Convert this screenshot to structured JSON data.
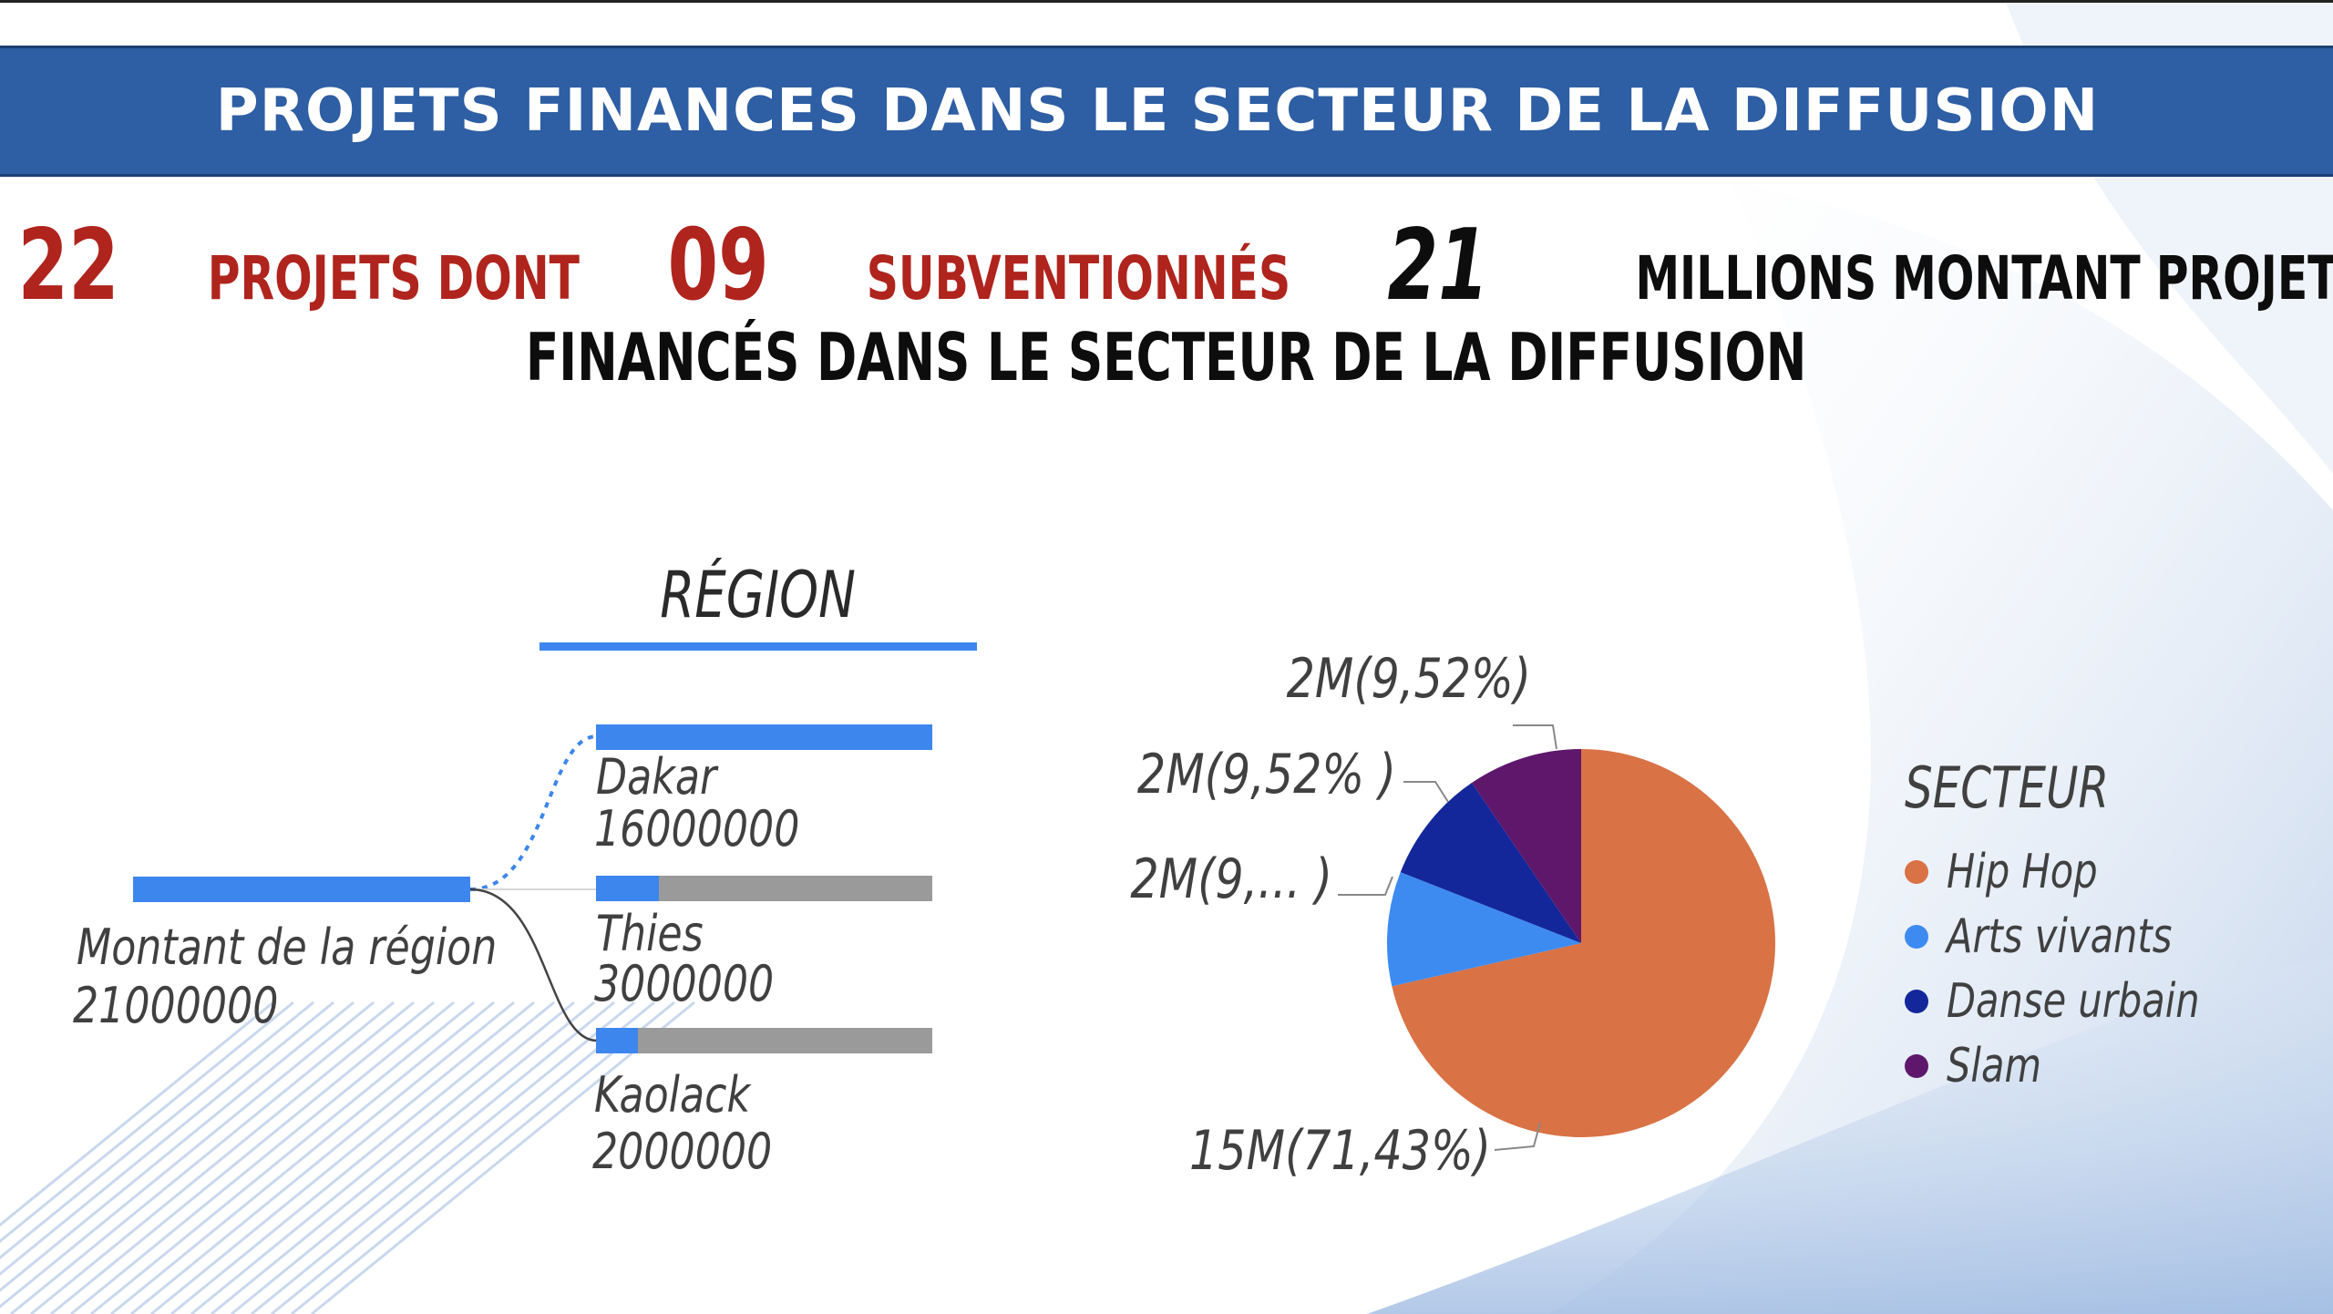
{
  "banner": {
    "title": "PROJETS FINANCES DANS LE SECTEUR DE LA DIFFUSION"
  },
  "headline": {
    "projects_count": "22",
    "projects_text": "PROJETS DONT",
    "subsidized_count": "09",
    "subsidized_text": "SUBVENTIONNÉS",
    "amount": "21",
    "amount_text": "MILLIONS MONTANT PROJET",
    "line2": "FINANCÉS DANS LE SECTEUR DE LA DIFFUSION"
  },
  "region": {
    "title": "RÉGION",
    "root": {
      "label": "Montant de la région",
      "value": "21000000"
    },
    "items": [
      {
        "label": "Dakar",
        "value": "16000000"
      },
      {
        "label": "Thies",
        "value": "3000000"
      },
      {
        "label": "Kaolack",
        "value": "2000000"
      }
    ]
  },
  "chart_data": [
    {
      "type": "bar",
      "title": "RÉGION",
      "total_label": "Montant de la région",
      "total": 21000000,
      "categories": [
        "Dakar",
        "Thies",
        "Kaolack"
      ],
      "values": [
        16000000,
        3000000,
        2000000
      ]
    },
    {
      "type": "pie",
      "legend_title": "SECTEUR",
      "legend_position": "right",
      "categories": [
        "Hip Hop",
        "Arts vivants",
        "Danse urbain",
        "Slam"
      ],
      "values": [
        15,
        2,
        2,
        2
      ],
      "labels": [
        "15M(71,43%)",
        "2M(9,... )",
        "2M(9,52% )",
        "2M(9,52%)"
      ],
      "colors": [
        "#d97245",
        "#3d8bf0",
        "#13279a",
        "#5e176b"
      ]
    }
  ]
}
